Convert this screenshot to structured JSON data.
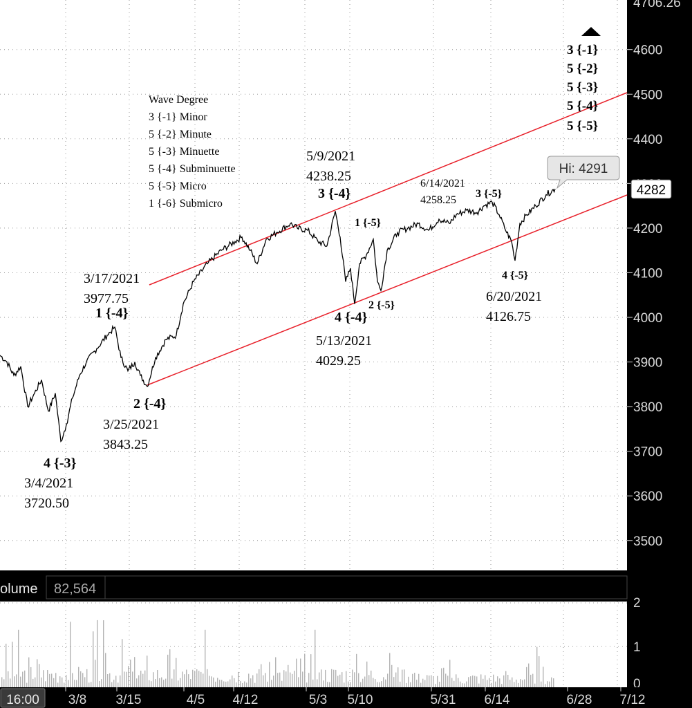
{
  "price_axis": {
    "top_partial": "4706.26",
    "ticks": [
      "4600",
      "4500",
      "4400",
      "4300",
      "4200",
      "4100",
      "4000",
      "3900",
      "3800",
      "3700",
      "3600",
      "3500"
    ],
    "last_price": "4282"
  },
  "hi_label": "Hi: 4291",
  "volume_panel": {
    "label": "olume",
    "value": "82,564",
    "ticks": [
      "2",
      "1",
      "0"
    ]
  },
  "date_axis": {
    "current": "16:00",
    "ticks": [
      "3/8",
      "3/15",
      "4/5",
      "4/12",
      "5/3",
      "5/10",
      "5/31",
      "6/14",
      "6/28",
      "7/12"
    ]
  },
  "legend": {
    "title": "Wave Degree",
    "lines": [
      "3 {-1} Minor",
      "5 {-2} Minute",
      "5 {-3} Minuette",
      "5 {-4} Subminuette",
      "5 {-5} Micro",
      "1 {-6} Submicro"
    ]
  },
  "wave_stack": [
    "3 {-1}",
    "5 {-2}",
    "5 {-3}",
    "5 {-4}",
    "5 {-5}"
  ],
  "annotations": {
    "w4m3": {
      "wave": "4 {-3}",
      "date": "3/4/2021",
      "price": "3720.50"
    },
    "w1m4": {
      "wave": "1 {-4}",
      "date": "3/17/2021",
      "price": "3977.75"
    },
    "w2m4": {
      "wave": "2 {-4}",
      "date": "3/25/2021",
      "price": "3843.25"
    },
    "w3m4": {
      "wave": "3 {-4}",
      "date": "5/9/2021",
      "price": "4238.25"
    },
    "w4m4": {
      "wave": "4 {-4}",
      "date": "5/13/2021",
      "price": "4029.25"
    },
    "w1m5": {
      "wave": "1 {-5}"
    },
    "w2m5": {
      "wave": "2 {-5}"
    },
    "w3m5": {
      "wave": "3 {-5}",
      "date": "6/14/2021",
      "price": "4258.25"
    },
    "w4m5": {
      "wave": "4 {-5}",
      "date": "6/20/2021",
      "price": "4126.75"
    }
  },
  "chart_data": {
    "type": "line",
    "y_range": [
      3450,
      4710
    ],
    "channel_lines": [
      {
        "from": {
          "date": "3/17/2021",
          "price": 4070
        },
        "to": {
          "date": "right-edge",
          "price": 4500
        }
      },
      {
        "from": {
          "date": "3/25/2021",
          "price": 3845
        },
        "to": {
          "date": "right-edge",
          "price": 4282
        }
      }
    ],
    "pivots": [
      {
        "date": "3/4/2021",
        "price": 3720.5,
        "wave": "4 {-3}"
      },
      {
        "date": "3/17/2021",
        "price": 3977.75,
        "wave": "1 {-4}"
      },
      {
        "date": "3/25/2021",
        "price": 3843.25,
        "wave": "2 {-4}"
      },
      {
        "date": "5/9/2021",
        "price": 4238.25,
        "wave": "3 {-4}"
      },
      {
        "date": "5/13/2021",
        "price": 4029.25,
        "wave": "4 {-4}"
      },
      {
        "date": "6/14/2021",
        "price": 4258.25,
        "wave": "3 {-5}"
      },
      {
        "date": "6/20/2021",
        "price": 4126.75,
        "wave": "4 {-5}"
      }
    ],
    "high": 4291,
    "last": 4282,
    "colors": {
      "price": "#000000",
      "channel": "#e8202a",
      "volume": "#b4b4b4",
      "axis_bg": "#000000",
      "grid": "#9a9a9a"
    }
  }
}
